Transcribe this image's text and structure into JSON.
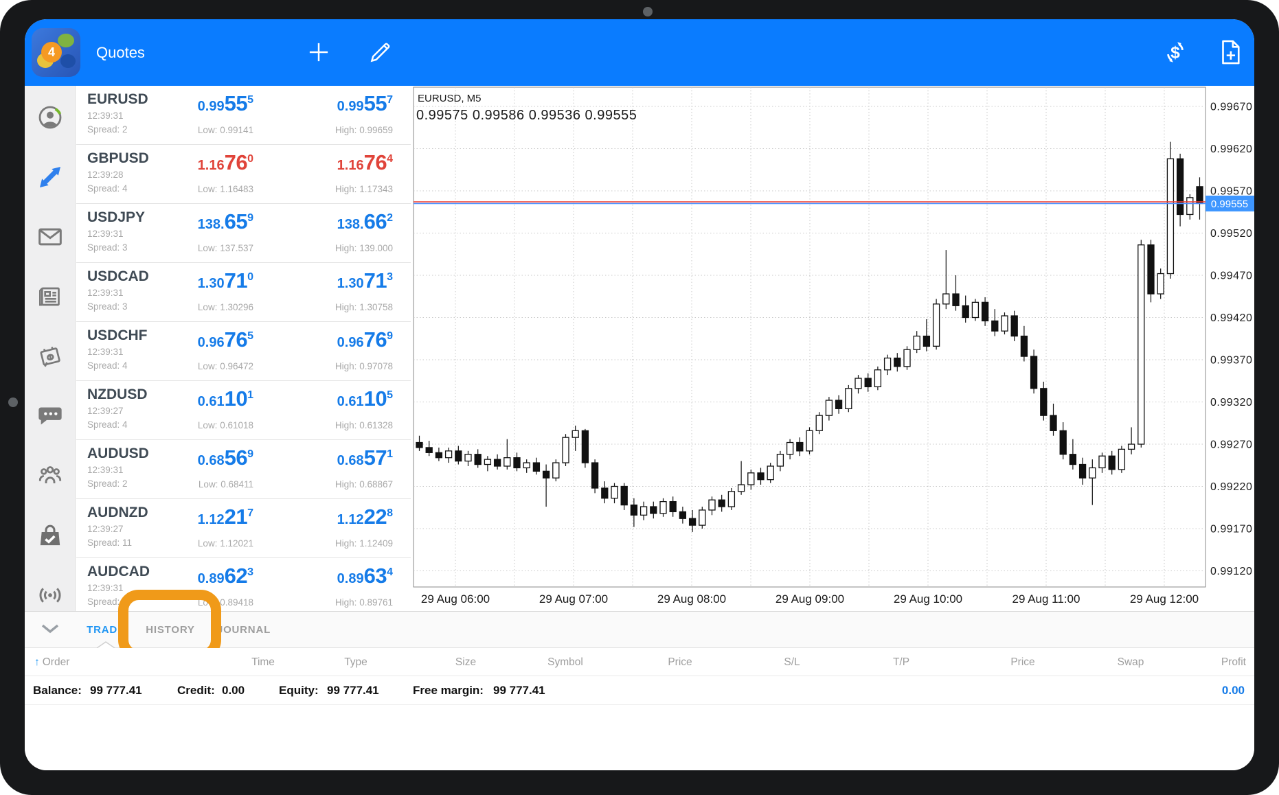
{
  "topbar": {
    "title": "Quotes",
    "icons": [
      "add-symbol-icon",
      "edit-icon",
      "currency-exchange-icon",
      "new-order-icon"
    ]
  },
  "sidebar": {
    "items": [
      {
        "icon": "account-icon"
      },
      {
        "icon": "trade-icon",
        "active": true
      },
      {
        "icon": "mail-icon"
      },
      {
        "icon": "news-icon"
      },
      {
        "icon": "calendar-icon"
      },
      {
        "icon": "chat-icon"
      },
      {
        "icon": "community-icon"
      },
      {
        "icon": "market-icon"
      },
      {
        "icon": "signals-icon"
      }
    ]
  },
  "quotes": [
    {
      "symbol": "EURUSD",
      "time": "12:39:31",
      "spread": "Spread: 2",
      "dir": "up",
      "bid": {
        "pre": "0.99",
        "big": "55",
        "sup": "5"
      },
      "ask": {
        "pre": "0.99",
        "big": "55",
        "sup": "7"
      },
      "low": "Low: 0.99141",
      "high": "High: 0.99659"
    },
    {
      "symbol": "GBPUSD",
      "time": "12:39:28",
      "spread": "Spread: 4",
      "dir": "down",
      "bid": {
        "pre": "1.16",
        "big": "76",
        "sup": "0"
      },
      "ask": {
        "pre": "1.16",
        "big": "76",
        "sup": "4"
      },
      "low": "Low: 1.16483",
      "high": "High: 1.17343"
    },
    {
      "symbol": "USDJPY",
      "time": "12:39:31",
      "spread": "Spread: 3",
      "dir": "up",
      "bid": {
        "pre": "138.",
        "big": "65",
        "sup": "9"
      },
      "ask": {
        "pre": "138.",
        "big": "66",
        "sup": "2"
      },
      "low": "Low: 137.537",
      "high": "High: 139.000"
    },
    {
      "symbol": "USDCAD",
      "time": "12:39:31",
      "spread": "Spread: 3",
      "dir": "up",
      "bid": {
        "pre": "1.30",
        "big": "71",
        "sup": "0"
      },
      "ask": {
        "pre": "1.30",
        "big": "71",
        "sup": "3"
      },
      "low": "Low: 1.30296",
      "high": "High: 1.30758"
    },
    {
      "symbol": "USDCHF",
      "time": "12:39:31",
      "spread": "Spread: 4",
      "dir": "up",
      "bid": {
        "pre": "0.96",
        "big": "76",
        "sup": "5"
      },
      "ask": {
        "pre": "0.96",
        "big": "76",
        "sup": "9"
      },
      "low": "Low: 0.96472",
      "high": "High: 0.97078"
    },
    {
      "symbol": "NZDUSD",
      "time": "12:39:27",
      "spread": "Spread: 4",
      "dir": "up",
      "bid": {
        "pre": "0.61",
        "big": "10",
        "sup": "1"
      },
      "ask": {
        "pre": "0.61",
        "big": "10",
        "sup": "5"
      },
      "low": "Low: 0.61018",
      "high": "High: 0.61328"
    },
    {
      "symbol": "AUDUSD",
      "time": "12:39:31",
      "spread": "Spread: 2",
      "dir": "up",
      "bid": {
        "pre": "0.68",
        "big": "56",
        "sup": "9"
      },
      "ask": {
        "pre": "0.68",
        "big": "57",
        "sup": "1"
      },
      "low": "Low: 0.68411",
      "high": "High: 0.68867"
    },
    {
      "symbol": "AUDNZD",
      "time": "12:39:27",
      "spread": "Spread: 11",
      "dir": "up",
      "bid": {
        "pre": "1.12",
        "big": "21",
        "sup": "7"
      },
      "ask": {
        "pre": "1.12",
        "big": "22",
        "sup": "8"
      },
      "low": "Low: 1.12021",
      "high": "High: 1.12409"
    },
    {
      "symbol": "AUDCAD",
      "time": "12:39:31",
      "spread": "Spread:",
      "dir": "up",
      "bid": {
        "pre": "0.89",
        "big": "62",
        "sup": "3"
      },
      "ask": {
        "pre": "0.89",
        "big": "63",
        "sup": "4"
      },
      "low": "Low: 0.89418",
      "high": "High: 0.89761"
    }
  ],
  "chart_data": {
    "type": "candlestick",
    "symbol_label": "EURUSD, M5",
    "ohlc_line": "0.99575 0.99586 0.99536 0.99555",
    "open": 0.99575,
    "high": 0.99586,
    "low": 0.99536,
    "close": 0.99555,
    "bid": 0.99555,
    "ask": 0.99557,
    "price_badge": "0.99555",
    "y_ticks": [
      "0.99670",
      "0.99620",
      "0.99570",
      "0.99520",
      "0.99470",
      "0.99420",
      "0.99370",
      "0.99320",
      "0.99270",
      "0.99220",
      "0.99170",
      "0.99120"
    ],
    "x_ticks": [
      "29 Aug 06:00",
      "29 Aug 07:00",
      "29 Aug 08:00",
      "29 Aug 09:00",
      "29 Aug 10:00",
      "29 Aug 11:00",
      "29 Aug 12:00"
    ],
    "interval_minutes": 5,
    "scale": 100000,
    "candles": [
      [
        99272,
        99280,
        99262,
        99266
      ],
      [
        99266,
        99274,
        99256,
        99260
      ],
      [
        99260,
        99266,
        99250,
        99254
      ],
      [
        99254,
        99266,
        99248,
        99262
      ],
      [
        99262,
        99268,
        99246,
        99250
      ],
      [
        99250,
        99262,
        99244,
        99258
      ],
      [
        99258,
        99264,
        99242,
        99246
      ],
      [
        99246,
        99256,
        99238,
        99252
      ],
      [
        99252,
        99258,
        99240,
        99244
      ],
      [
        99244,
        99276,
        99240,
        99254
      ],
      [
        99254,
        99260,
        99238,
        99242
      ],
      [
        99242,
        99252,
        99236,
        99248
      ],
      [
        99248,
        99254,
        99234,
        99238
      ],
      [
        99238,
        99246,
        99196,
        99230
      ],
      [
        99230,
        99252,
        99226,
        99248
      ],
      [
        99248,
        99282,
        99244,
        99278
      ],
      [
        99278,
        99292,
        99262,
        99286
      ],
      [
        99286,
        99288,
        99242,
        99248
      ],
      [
        99248,
        99252,
        99212,
        99218
      ],
      [
        99218,
        99226,
        99200,
        99206
      ],
      [
        99206,
        99224,
        99200,
        99220
      ],
      [
        99220,
        99224,
        99192,
        99198
      ],
      [
        99198,
        99206,
        99172,
        99186
      ],
      [
        99186,
        99202,
        99180,
        99196
      ],
      [
        99196,
        99202,
        99182,
        99188
      ],
      [
        99188,
        99206,
        99184,
        99202
      ],
      [
        99202,
        99208,
        99184,
        99190
      ],
      [
        99190,
        99196,
        99176,
        99182
      ],
      [
        99182,
        99192,
        99166,
        99174
      ],
      [
        99174,
        99196,
        99170,
        99192
      ],
      [
        99192,
        99208,
        99186,
        99204
      ],
      [
        99204,
        99210,
        99190,
        99196
      ],
      [
        99196,
        99218,
        99192,
        99214
      ],
      [
        99214,
        99250,
        99210,
        99222
      ],
      [
        99222,
        99240,
        99216,
        99236
      ],
      [
        99236,
        99242,
        99222,
        99228
      ],
      [
        99228,
        99248,
        99224,
        99244
      ],
      [
        99244,
        99262,
        99238,
        99258
      ],
      [
        99258,
        99276,
        99252,
        99272
      ],
      [
        99272,
        99278,
        99256,
        99262
      ],
      [
        99262,
        99290,
        99258,
        99286
      ],
      [
        99286,
        99308,
        99282,
        99304
      ],
      [
        99304,
        99326,
        99298,
        99322
      ],
      [
        99322,
        99328,
        99306,
        99312
      ],
      [
        99312,
        99340,
        99308,
        99336
      ],
      [
        99336,
        99352,
        99330,
        99348
      ],
      [
        99348,
        99354,
        99332,
        99338
      ],
      [
        99338,
        99362,
        99334,
        99358
      ],
      [
        99358,
        99376,
        99352,
        99372
      ],
      [
        99372,
        99378,
        99356,
        99362
      ],
      [
        99362,
        99386,
        99358,
        99382
      ],
      [
        99382,
        99404,
        99378,
        99398
      ],
      [
        99398,
        99418,
        99380,
        99386
      ],
      [
        99386,
        99442,
        99382,
        99436
      ],
      [
        99436,
        99500,
        99430,
        99448
      ],
      [
        99448,
        99470,
        99428,
        99434
      ],
      [
        99434,
        99446,
        99414,
        99420
      ],
      [
        99420,
        99442,
        99416,
        99438
      ],
      [
        99438,
        99444,
        99410,
        99416
      ],
      [
        99416,
        99430,
        99398,
        99404
      ],
      [
        99404,
        99426,
        99400,
        99422
      ],
      [
        99422,
        99428,
        99392,
        99398
      ],
      [
        99398,
        99410,
        99368,
        99374
      ],
      [
        99374,
        99382,
        99330,
        99336
      ],
      [
        99336,
        99344,
        99298,
        99304
      ],
      [
        99304,
        99318,
        99280,
        99286
      ],
      [
        99286,
        99296,
        99252,
        99258
      ],
      [
        99258,
        99276,
        99240,
        99246
      ],
      [
        99246,
        99254,
        99222,
        99230
      ],
      [
        99230,
        99252,
        99198,
        99242
      ],
      [
        99242,
        99260,
        99236,
        99256
      ],
      [
        99256,
        99262,
        99234,
        99240
      ],
      [
        99240,
        99268,
        99236,
        99264
      ],
      [
        99264,
        99290,
        99258,
        99270
      ],
      [
        99270,
        99512,
        99266,
        99506
      ],
      [
        99506,
        99512,
        99438,
        99448
      ],
      [
        99448,
        99478,
        99442,
        99472
      ],
      [
        99472,
        99628,
        99466,
        99608
      ],
      [
        99608,
        99614,
        99528,
        99542
      ],
      [
        99542,
        99566,
        99536,
        99562
      ],
      [
        99575,
        99586,
        99536,
        99555
      ]
    ]
  },
  "tabs": {
    "items": [
      {
        "label": "TRADE",
        "active": true
      },
      {
        "label": "HISTORY",
        "active": false
      },
      {
        "label": "JOURNAL",
        "active": false
      }
    ]
  },
  "annotation": {
    "shape": "rounded-rect-highlight",
    "color": "#F09A19",
    "target": "HISTORY"
  },
  "table": {
    "sort_icon": "up-arrow-icon",
    "columns": [
      "Order",
      "Time",
      "Type",
      "Size",
      "Symbol",
      "Price",
      "S/L",
      "T/P",
      "Price",
      "Swap",
      "Profit"
    ]
  },
  "account": {
    "balance_label": "Balance:",
    "balance": "99 777.41",
    "credit_label": "Credit:",
    "credit": "0.00",
    "equity_label": "Equity:",
    "equity": "99 777.41",
    "free_margin_label": "Free margin:",
    "free_margin": "99 777.41",
    "profit": "0.00"
  },
  "colors": {
    "topbar": "#0A7CFF",
    "quote_up": "#157BE8",
    "quote_down": "#E0443A",
    "active_tab": "#2196F3",
    "annotation": "#F09A19",
    "ask_line": "#F23B2E",
    "bid_line": "#4A90FF",
    "badge_bg": "#3E96FF"
  }
}
